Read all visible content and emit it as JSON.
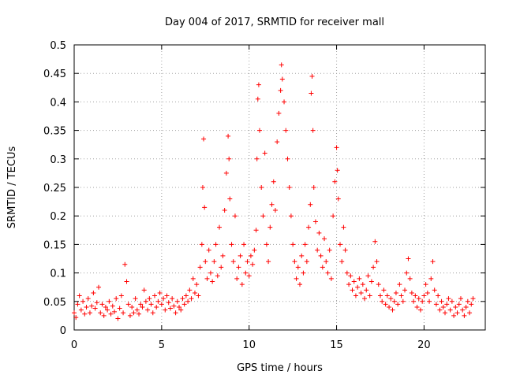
{
  "chart_data": {
    "type": "scatter",
    "title": "Day 004 of 2017, SRMTID for receiver mall",
    "xlabel": "GPS time / hours",
    "ylabel": "SRMTID / TECUs",
    "xlim": [
      0,
      23.5
    ],
    "ylim": [
      0,
      0.5
    ],
    "xticks": [
      0,
      5,
      10,
      15,
      20
    ],
    "yticks": [
      0,
      0.05,
      0.1,
      0.15,
      0.2,
      0.25,
      0.3,
      0.35,
      0.4,
      0.45,
      0.5
    ],
    "grid": true,
    "marker": "+",
    "series": [
      {
        "name": "SRMTID",
        "color": "#ff0000",
        "points": [
          [
            0.0,
            0.03
          ],
          [
            0.1,
            0.022
          ],
          [
            0.2,
            0.045
          ],
          [
            0.3,
            0.06
          ],
          [
            0.4,
            0.035
          ],
          [
            0.5,
            0.05
          ],
          [
            0.6,
            0.028
          ],
          [
            0.7,
            0.04
          ],
          [
            0.8,
            0.055
          ],
          [
            0.9,
            0.03
          ],
          [
            1.0,
            0.042
          ],
          [
            1.1,
            0.065
          ],
          [
            1.2,
            0.038
          ],
          [
            1.3,
            0.048
          ],
          [
            1.4,
            0.075
          ],
          [
            1.5,
            0.03
          ],
          [
            1.6,
            0.045
          ],
          [
            1.7,
            0.025
          ],
          [
            1.8,
            0.04
          ],
          [
            1.9,
            0.035
          ],
          [
            2.0,
            0.05
          ],
          [
            2.1,
            0.028
          ],
          [
            2.2,
            0.042
          ],
          [
            2.3,
            0.032
          ],
          [
            2.4,
            0.055
          ],
          [
            2.5,
            0.02
          ],
          [
            2.6,
            0.038
          ],
          [
            2.7,
            0.06
          ],
          [
            2.8,
            0.03
          ],
          [
            2.9,
            0.115
          ],
          [
            3.0,
            0.085
          ],
          [
            3.1,
            0.045
          ],
          [
            3.2,
            0.025
          ],
          [
            3.3,
            0.04
          ],
          [
            3.4,
            0.03
          ],
          [
            3.5,
            0.055
          ],
          [
            3.6,
            0.035
          ],
          [
            3.7,
            0.028
          ],
          [
            3.8,
            0.045
          ],
          [
            3.9,
            0.04
          ],
          [
            4.0,
            0.07
          ],
          [
            4.1,
            0.05
          ],
          [
            4.2,
            0.035
          ],
          [
            4.3,
            0.055
          ],
          [
            4.4,
            0.045
          ],
          [
            4.5,
            0.03
          ],
          [
            4.6,
            0.06
          ],
          [
            4.7,
            0.04
          ],
          [
            4.8,
            0.05
          ],
          [
            4.9,
            0.065
          ],
          [
            5.0,
            0.045
          ],
          [
            5.1,
            0.055
          ],
          [
            5.2,
            0.035
          ],
          [
            5.3,
            0.06
          ],
          [
            5.4,
            0.048
          ],
          [
            5.5,
            0.038
          ],
          [
            5.6,
            0.055
          ],
          [
            5.7,
            0.042
          ],
          [
            5.8,
            0.03
          ],
          [
            5.9,
            0.05
          ],
          [
            6.0,
            0.04
          ],
          [
            6.1,
            0.035
          ],
          [
            6.2,
            0.055
          ],
          [
            6.3,
            0.045
          ],
          [
            6.4,
            0.06
          ],
          [
            6.5,
            0.05
          ],
          [
            6.6,
            0.07
          ],
          [
            6.7,
            0.055
          ],
          [
            6.8,
            0.09
          ],
          [
            6.9,
            0.065
          ],
          [
            7.0,
            0.08
          ],
          [
            7.1,
            0.06
          ],
          [
            7.2,
            0.11
          ],
          [
            7.3,
            0.15
          ],
          [
            7.35,
            0.25
          ],
          [
            7.4,
            0.335
          ],
          [
            7.45,
            0.215
          ],
          [
            7.5,
            0.12
          ],
          [
            7.6,
            0.09
          ],
          [
            7.7,
            0.14
          ],
          [
            7.8,
            0.1
          ],
          [
            7.9,
            0.085
          ],
          [
            8.0,
            0.12
          ],
          [
            8.1,
            0.15
          ],
          [
            8.2,
            0.095
          ],
          [
            8.3,
            0.18
          ],
          [
            8.4,
            0.11
          ],
          [
            8.5,
            0.13
          ],
          [
            8.6,
            0.21
          ],
          [
            8.7,
            0.275
          ],
          [
            8.8,
            0.34
          ],
          [
            8.85,
            0.3
          ],
          [
            8.9,
            0.23
          ],
          [
            9.0,
            0.15
          ],
          [
            9.1,
            0.12
          ],
          [
            9.2,
            0.2
          ],
          [
            9.3,
            0.09
          ],
          [
            9.4,
            0.11
          ],
          [
            9.5,
            0.13
          ],
          [
            9.6,
            0.08
          ],
          [
            9.7,
            0.15
          ],
          [
            9.8,
            0.1
          ],
          [
            9.9,
            0.12
          ],
          [
            10.0,
            0.095
          ],
          [
            10.1,
            0.13
          ],
          [
            10.2,
            0.115
          ],
          [
            10.3,
            0.14
          ],
          [
            10.4,
            0.175
          ],
          [
            10.45,
            0.3
          ],
          [
            10.5,
            0.405
          ],
          [
            10.55,
            0.43
          ],
          [
            10.6,
            0.35
          ],
          [
            10.7,
            0.25
          ],
          [
            10.8,
            0.2
          ],
          [
            10.9,
            0.31
          ],
          [
            11.0,
            0.15
          ],
          [
            11.1,
            0.12
          ],
          [
            11.2,
            0.18
          ],
          [
            11.3,
            0.22
          ],
          [
            11.4,
            0.26
          ],
          [
            11.5,
            0.21
          ],
          [
            11.6,
            0.33
          ],
          [
            11.7,
            0.38
          ],
          [
            11.8,
            0.42
          ],
          [
            11.85,
            0.465
          ],
          [
            11.9,
            0.44
          ],
          [
            12.0,
            0.4
          ],
          [
            12.1,
            0.35
          ],
          [
            12.2,
            0.3
          ],
          [
            12.3,
            0.25
          ],
          [
            12.4,
            0.2
          ],
          [
            12.5,
            0.15
          ],
          [
            12.6,
            0.12
          ],
          [
            12.7,
            0.09
          ],
          [
            12.8,
            0.11
          ],
          [
            12.9,
            0.08
          ],
          [
            13.0,
            0.13
          ],
          [
            13.1,
            0.1
          ],
          [
            13.2,
            0.15
          ],
          [
            13.3,
            0.12
          ],
          [
            13.4,
            0.18
          ],
          [
            13.5,
            0.22
          ],
          [
            13.55,
            0.415
          ],
          [
            13.6,
            0.445
          ],
          [
            13.65,
            0.35
          ],
          [
            13.7,
            0.25
          ],
          [
            13.8,
            0.19
          ],
          [
            13.9,
            0.14
          ],
          [
            14.0,
            0.17
          ],
          [
            14.1,
            0.13
          ],
          [
            14.2,
            0.11
          ],
          [
            14.3,
            0.16
          ],
          [
            14.4,
            0.12
          ],
          [
            14.5,
            0.1
          ],
          [
            14.6,
            0.14
          ],
          [
            14.7,
            0.09
          ],
          [
            14.8,
            0.2
          ],
          [
            14.9,
            0.26
          ],
          [
            15.0,
            0.32
          ],
          [
            15.05,
            0.28
          ],
          [
            15.1,
            0.23
          ],
          [
            15.2,
            0.15
          ],
          [
            15.3,
            0.12
          ],
          [
            15.4,
            0.18
          ],
          [
            15.5,
            0.14
          ],
          [
            15.6,
            0.1
          ],
          [
            15.7,
            0.08
          ],
          [
            15.8,
            0.095
          ],
          [
            15.9,
            0.07
          ],
          [
            16.0,
            0.085
          ],
          [
            16.1,
            0.06
          ],
          [
            16.2,
            0.075
          ],
          [
            16.3,
            0.09
          ],
          [
            16.4,
            0.065
          ],
          [
            16.5,
            0.08
          ],
          [
            16.6,
            0.055
          ],
          [
            16.7,
            0.07
          ],
          [
            16.8,
            0.095
          ],
          [
            16.9,
            0.06
          ],
          [
            17.0,
            0.085
          ],
          [
            17.1,
            0.11
          ],
          [
            17.2,
            0.155
          ],
          [
            17.3,
            0.12
          ],
          [
            17.4,
            0.08
          ],
          [
            17.5,
            0.06
          ],
          [
            17.6,
            0.05
          ],
          [
            17.7,
            0.07
          ],
          [
            17.8,
            0.045
          ],
          [
            17.9,
            0.06
          ],
          [
            18.0,
            0.04
          ],
          [
            18.1,
            0.055
          ],
          [
            18.2,
            0.035
          ],
          [
            18.3,
            0.05
          ],
          [
            18.4,
            0.065
          ],
          [
            18.5,
            0.045
          ],
          [
            18.6,
            0.08
          ],
          [
            18.7,
            0.06
          ],
          [
            18.8,
            0.05
          ],
          [
            18.9,
            0.07
          ],
          [
            19.0,
            0.1
          ],
          [
            19.1,
            0.125
          ],
          [
            19.2,
            0.09
          ],
          [
            19.3,
            0.065
          ],
          [
            19.4,
            0.05
          ],
          [
            19.5,
            0.06
          ],
          [
            19.6,
            0.04
          ],
          [
            19.7,
            0.055
          ],
          [
            19.8,
            0.035
          ],
          [
            19.9,
            0.05
          ],
          [
            20.0,
            0.06
          ],
          [
            20.1,
            0.08
          ],
          [
            20.2,
            0.065
          ],
          [
            20.3,
            0.05
          ],
          [
            20.4,
            0.09
          ],
          [
            20.5,
            0.12
          ],
          [
            20.6,
            0.07
          ],
          [
            20.7,
            0.045
          ],
          [
            20.8,
            0.06
          ],
          [
            20.9,
            0.035
          ],
          [
            21.0,
            0.05
          ],
          [
            21.1,
            0.04
          ],
          [
            21.2,
            0.03
          ],
          [
            21.3,
            0.045
          ],
          [
            21.4,
            0.055
          ],
          [
            21.5,
            0.035
          ],
          [
            21.6,
            0.05
          ],
          [
            21.7,
            0.025
          ],
          [
            21.8,
            0.04
          ],
          [
            21.9,
            0.03
          ],
          [
            22.0,
            0.045
          ],
          [
            22.1,
            0.055
          ],
          [
            22.2,
            0.035
          ],
          [
            22.3,
            0.025
          ],
          [
            22.4,
            0.04
          ],
          [
            22.5,
            0.05
          ],
          [
            22.6,
            0.03
          ],
          [
            22.7,
            0.045
          ],
          [
            22.8,
            0.055
          ]
        ]
      }
    ]
  }
}
